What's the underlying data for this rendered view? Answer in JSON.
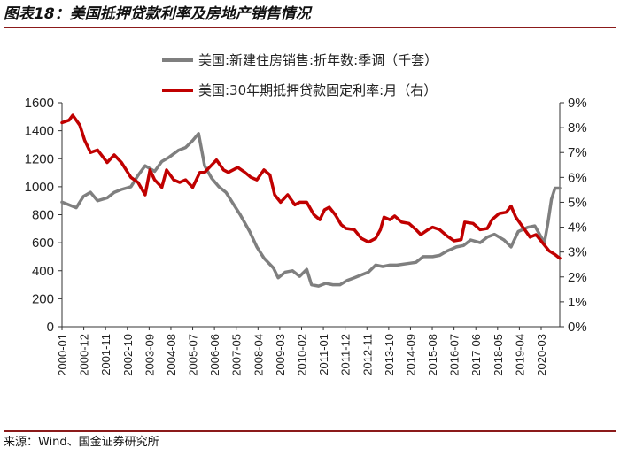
{
  "header": {
    "title": "图表18：美国抵押贷款利率及房地产销售情况"
  },
  "footer": {
    "source": "来源：Wind、国金证券研究所"
  },
  "chart_data": {
    "type": "line",
    "title": "图表18：美国抵押贷款利率及房地产销售情况",
    "x_ticks": [
      "2000-01",
      "2000-12",
      "2001-11",
      "2002-10",
      "2003-09",
      "2004-08",
      "2005-07",
      "2006-06",
      "2007-05",
      "2008-04",
      "2009-03",
      "2010-02",
      "2011-01",
      "2011-12",
      "2012-11",
      "2013-10",
      "2014-09",
      "2015-08",
      "2016-07",
      "2017-06",
      "2018-05",
      "2019-04",
      "2020-03"
    ],
    "y_left": {
      "min": 0,
      "max": 1600,
      "step": 200,
      "ticks": [
        "0",
        "200",
        "400",
        "600",
        "800",
        "1000",
        "1200",
        "1400",
        "1600"
      ]
    },
    "y_right": {
      "min": 0,
      "max": 9,
      "step": 1,
      "ticks": [
        "0%",
        "1%",
        "2%",
        "3%",
        "4%",
        "5%",
        "6%",
        "7%",
        "8%",
        "9%"
      ]
    },
    "series": [
      {
        "name": "美国:新建住房销售:折年数:季调（千套）",
        "axis": "left",
        "color": "#7f7f7f",
        "points": [
          [
            2000.0,
            890
          ],
          [
            2000.3,
            870
          ],
          [
            2000.6,
            850
          ],
          [
            2000.9,
            930
          ],
          [
            2001.2,
            960
          ],
          [
            2001.5,
            900
          ],
          [
            2001.9,
            920
          ],
          [
            2002.2,
            960
          ],
          [
            2002.5,
            980
          ],
          [
            2002.9,
            1000
          ],
          [
            2003.2,
            1080
          ],
          [
            2003.5,
            1150
          ],
          [
            2003.9,
            1110
          ],
          [
            2004.2,
            1180
          ],
          [
            2004.5,
            1210
          ],
          [
            2004.9,
            1260
          ],
          [
            2005.2,
            1280
          ],
          [
            2005.5,
            1330
          ],
          [
            2005.75,
            1380
          ],
          [
            2006.0,
            1150
          ],
          [
            2006.3,
            1060
          ],
          [
            2006.6,
            1000
          ],
          [
            2006.9,
            960
          ],
          [
            2007.2,
            880
          ],
          [
            2007.5,
            800
          ],
          [
            2007.9,
            680
          ],
          [
            2008.2,
            570
          ],
          [
            2008.5,
            490
          ],
          [
            2008.9,
            420
          ],
          [
            2009.1,
            350
          ],
          [
            2009.4,
            390
          ],
          [
            2009.7,
            400
          ],
          [
            2010.0,
            360
          ],
          [
            2010.3,
            410
          ],
          [
            2010.5,
            300
          ],
          [
            2010.8,
            290
          ],
          [
            2011.1,
            310
          ],
          [
            2011.4,
            300
          ],
          [
            2011.7,
            300
          ],
          [
            2012.0,
            330
          ],
          [
            2012.3,
            350
          ],
          [
            2012.6,
            370
          ],
          [
            2012.9,
            390
          ],
          [
            2013.2,
            440
          ],
          [
            2013.5,
            430
          ],
          [
            2013.8,
            440
          ],
          [
            2014.1,
            440
          ],
          [
            2014.5,
            450
          ],
          [
            2014.9,
            460
          ],
          [
            2015.2,
            500
          ],
          [
            2015.6,
            500
          ],
          [
            2015.9,
            510
          ],
          [
            2016.2,
            540
          ],
          [
            2016.6,
            570
          ],
          [
            2016.9,
            580
          ],
          [
            2017.2,
            620
          ],
          [
            2017.6,
            600
          ],
          [
            2017.9,
            640
          ],
          [
            2018.2,
            660
          ],
          [
            2018.6,
            620
          ],
          [
            2018.9,
            570
          ],
          [
            2019.2,
            680
          ],
          [
            2019.6,
            710
          ],
          [
            2019.9,
            720
          ],
          [
            2020.1,
            660
          ],
          [
            2020.3,
            600
          ],
          [
            2020.45,
            740
          ],
          [
            2020.6,
            910
          ],
          [
            2020.75,
            990
          ],
          [
            2020.95,
            990
          ]
        ]
      },
      {
        "name": "美国:30年期抵押贷款固定利率:月（右）",
        "axis": "right",
        "color": "#c00000",
        "points": [
          [
            2000.0,
            8.2
          ],
          [
            2000.3,
            8.3
          ],
          [
            2000.45,
            8.5
          ],
          [
            2000.75,
            8.1
          ],
          [
            2000.95,
            7.5
          ],
          [
            2001.2,
            7.0
          ],
          [
            2001.5,
            7.1
          ],
          [
            2001.9,
            6.6
          ],
          [
            2002.2,
            6.9
          ],
          [
            2002.5,
            6.6
          ],
          [
            2002.9,
            6.0
          ],
          [
            2003.2,
            5.8
          ],
          [
            2003.5,
            5.3
          ],
          [
            2003.7,
            6.3
          ],
          [
            2003.9,
            5.9
          ],
          [
            2004.2,
            5.6
          ],
          [
            2004.4,
            6.3
          ],
          [
            2004.7,
            5.9
          ],
          [
            2004.95,
            5.8
          ],
          [
            2005.2,
            5.9
          ],
          [
            2005.5,
            5.6
          ],
          [
            2005.8,
            6.2
          ],
          [
            2006.0,
            6.2
          ],
          [
            2006.3,
            6.5
          ],
          [
            2006.5,
            6.7
          ],
          [
            2006.8,
            6.3
          ],
          [
            2007.0,
            6.2
          ],
          [
            2007.4,
            6.4
          ],
          [
            2007.7,
            6.2
          ],
          [
            2007.95,
            6.0
          ],
          [
            2008.2,
            5.9
          ],
          [
            2008.5,
            6.3
          ],
          [
            2008.75,
            6.1
          ],
          [
            2008.95,
            5.3
          ],
          [
            2009.2,
            5.0
          ],
          [
            2009.5,
            5.3
          ],
          [
            2009.8,
            4.9
          ],
          [
            2010.0,
            5.0
          ],
          [
            2010.3,
            5.0
          ],
          [
            2010.6,
            4.5
          ],
          [
            2010.85,
            4.3
          ],
          [
            2011.05,
            4.7
          ],
          [
            2011.25,
            4.8
          ],
          [
            2011.5,
            4.5
          ],
          [
            2011.75,
            4.1
          ],
          [
            2011.95,
            3.95
          ],
          [
            2012.3,
            3.9
          ],
          [
            2012.6,
            3.55
          ],
          [
            2012.9,
            3.4
          ],
          [
            2013.2,
            3.55
          ],
          [
            2013.4,
            3.9
          ],
          [
            2013.55,
            4.4
          ],
          [
            2013.8,
            4.3
          ],
          [
            2014.0,
            4.45
          ],
          [
            2014.3,
            4.2
          ],
          [
            2014.6,
            4.15
          ],
          [
            2014.9,
            3.9
          ],
          [
            2015.1,
            3.7
          ],
          [
            2015.4,
            3.9
          ],
          [
            2015.6,
            4.0
          ],
          [
            2015.9,
            3.9
          ],
          [
            2016.2,
            3.65
          ],
          [
            2016.5,
            3.45
          ],
          [
            2016.8,
            3.5
          ],
          [
            2016.95,
            4.2
          ],
          [
            2017.3,
            4.15
          ],
          [
            2017.6,
            3.9
          ],
          [
            2017.9,
            3.95
          ],
          [
            2018.1,
            4.3
          ],
          [
            2018.4,
            4.55
          ],
          [
            2018.7,
            4.6
          ],
          [
            2018.9,
            4.85
          ],
          [
            2019.1,
            4.4
          ],
          [
            2019.4,
            4.0
          ],
          [
            2019.7,
            3.6
          ],
          [
            2019.95,
            3.7
          ],
          [
            2020.2,
            3.4
          ],
          [
            2020.5,
            3.05
          ],
          [
            2020.75,
            2.9
          ],
          [
            2020.95,
            2.75
          ]
        ]
      }
    ]
  }
}
